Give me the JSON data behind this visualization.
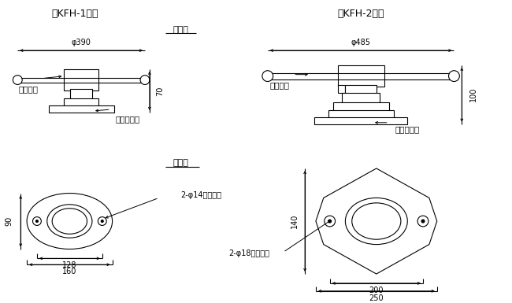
{
  "bg_color": "#ffffff",
  "title1": "》KFH-1形「",
  "title2": "》KFH-2形「",
  "title1_display": "【KFH-1形】",
  "title2_display": "【KFH-2形】",
  "label_front": "正面図",
  "label_plan": "平面図",
  "handle_label": "ハンドル",
  "casing_label": "ケーシング",
  "hole14_label": "2-φ14取付け穴",
  "hole18_label": "2-φ18取付け穴",
  "dim_390": "φ390",
  "dim_485": "φ485",
  "dim_70": "70",
  "dim_100": "100",
  "dim_90": "90",
  "dim_128": "128",
  "dim_160": "160",
  "dim_140": "140",
  "dim_200": "200",
  "dim_250": "250",
  "line_color": "#000000",
  "font_size_title": 9,
  "font_size_label": 7.5,
  "font_size_dim": 7
}
